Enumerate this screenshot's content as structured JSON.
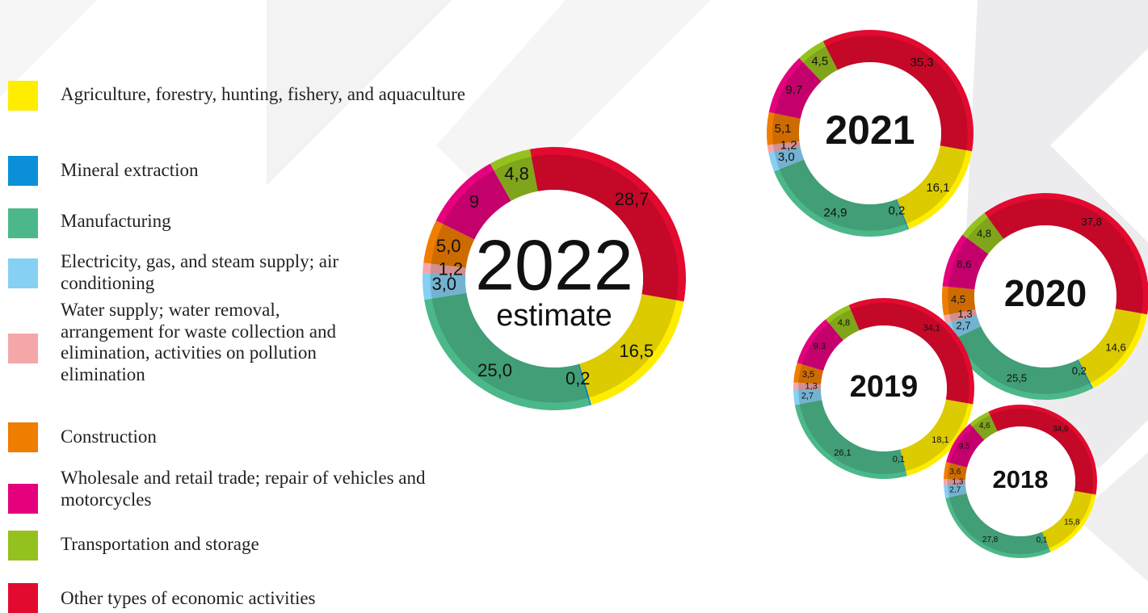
{
  "chart_data": {
    "type": "pie",
    "donut": true,
    "categories": [
      "Agriculture, forestry, hunting, fishery, and aquaculture",
      "Mineral extraction",
      "Manufacturing",
      "Electricity, gas, and steam supply; air conditioning",
      "Water supply; water removal, arrangement for waste collection and elimination, activities on pollution elimination",
      "Construction",
      "Wholesale and retail trade; repair of vehicles and motorcycles",
      "Transportation and storage",
      "Other types of economic activities"
    ],
    "colors": [
      "#ffed00",
      "#0a8fd8",
      "#4cb88a",
      "#86d0f3",
      "#f4a7a9",
      "#ef7d00",
      "#e5007e",
      "#95c11f",
      "#e30a2f"
    ],
    "charts": [
      {
        "title": "2022",
        "subtitle": "estimate",
        "values": [
          16.5,
          0.2,
          25.0,
          3.0,
          1.2,
          5.0,
          9,
          4.8,
          28.7
        ],
        "value_labels": [
          "16,5",
          "0,2",
          "25,0",
          "3,0",
          "1,2",
          "5,0",
          "9",
          "4,8",
          "28,7"
        ]
      },
      {
        "title": "2021",
        "values": [
          16.1,
          0.2,
          24.9,
          3.0,
          1.2,
          5.1,
          9.7,
          4.5,
          35.3
        ],
        "value_labels": [
          "16,1",
          "0,2",
          "24,9",
          "3,0",
          "1,2",
          "5,1",
          "9,7",
          "4,5",
          "35,3"
        ]
      },
      {
        "title": "2020",
        "values": [
          14.6,
          0.2,
          25.5,
          2.7,
          1.3,
          4.5,
          8.6,
          4.8,
          37.8
        ],
        "value_labels": [
          "14,6",
          "0,2",
          "25,5",
          "2,7",
          "1,3",
          "4,5",
          "8,6",
          "4,8",
          "37,8"
        ]
      },
      {
        "title": "2019",
        "values": [
          18.1,
          0.1,
          26.1,
          2.7,
          1.3,
          3.5,
          9.3,
          4.8,
          34.1
        ],
        "value_labels": [
          "18,1",
          "0,1",
          "26,1",
          "2,7",
          "1,3",
          "3,5",
          "9,3",
          "4,8",
          "34,1"
        ]
      },
      {
        "title": "2018",
        "values": [
          15.8,
          0.1,
          27.8,
          2.7,
          1.3,
          3.6,
          9.5,
          4.6,
          34.6
        ],
        "value_labels": [
          "15,8",
          "0,1",
          "27,8",
          "2,7",
          "1,3",
          "3,6",
          "9,5",
          "4,6",
          "34,6"
        ]
      }
    ]
  }
}
